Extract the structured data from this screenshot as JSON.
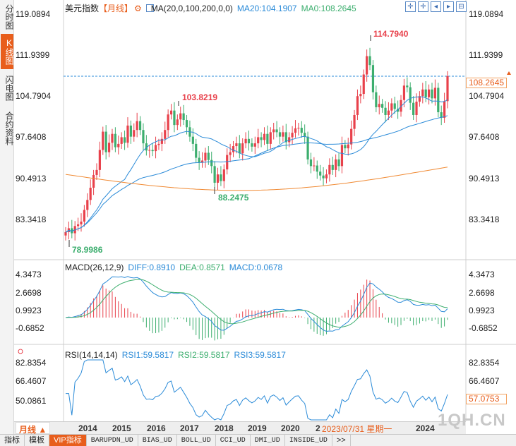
{
  "sidebar": {
    "tabs": [
      {
        "label": "分时图",
        "active": false
      },
      {
        "label": "K线图",
        "active": true
      },
      {
        "label": "闪电图",
        "active": false
      },
      {
        "label": "合约资料",
        "active": false
      }
    ]
  },
  "header": {
    "symbol": "美元指数",
    "period_tag": "【月线】",
    "ma_label": "MA(20,0,100,200,0,0)",
    "ma20": "MA20:104.1907",
    "ma0": "MA0:108.2645"
  },
  "toolbar_icons": [
    "zoom-in-icon",
    "zoom-out-icon",
    "pan-left-icon",
    "pan-right-icon",
    "reset-icon"
  ],
  "price_axis": {
    "labels": [
      "119.0894",
      "111.9399",
      "104.7904",
      "97.6408",
      "90.4913",
      "83.3418"
    ],
    "current": "108.2645"
  },
  "annotations": {
    "high": "114.7940",
    "high2": "103.8219",
    "low": "88.2475",
    "low_all": "78.9986"
  },
  "macd": {
    "title": "MACD(26,12,9)",
    "diff": "DIFF:0.8910",
    "dea": "DEA:0.8571",
    "macd": "MACD:0.0678",
    "axis": [
      "4.3473",
      "2.6698",
      "0.9923",
      "-0.6852"
    ]
  },
  "rsi": {
    "title": "RSI(14,14,14)",
    "rsi1": "RSI1:59.5817",
    "rsi2": "RSI2:59.5817",
    "rsi3": "RSI3:59.5817",
    "axis": [
      "82.8354",
      "66.4607",
      "50.0861"
    ],
    "current": "57.0753"
  },
  "x_axis": {
    "period_label": "月线 ▲",
    "years": [
      "2014",
      "2015",
      "2016",
      "2017",
      "2018",
      "2019",
      "2020",
      "2"
    ],
    "year_2024": "2024",
    "crosshair_date": "2023/07/31 星期一"
  },
  "bottom_tabs": [
    {
      "label": "指标",
      "active": false
    },
    {
      "label": "模板",
      "active": false
    },
    {
      "label": "VIP指标",
      "active": true
    },
    {
      "label": "BARUPDN_UD",
      "active": false
    },
    {
      "label": "BIAS_UD",
      "active": false
    },
    {
      "label": "BOLL_UD",
      "active": false
    },
    {
      "label": "CCI_UD",
      "active": false
    },
    {
      "label": "DMI_UD",
      "active": false
    },
    {
      "label": "INSIDE_UD",
      "active": false
    },
    {
      "label": ">>",
      "active": false
    }
  ],
  "watermark": "1QH.CN",
  "colors": {
    "up": "#e8414b",
    "down": "#3cae6e",
    "ma20": "#2b8bd8",
    "ma100": "#2b8bd8",
    "ma200": "#f08a34",
    "accent": "#e85e1c",
    "dea": "#3cae6e"
  },
  "chart_data": {
    "type": "candlestick",
    "title": "美元指数【月线】",
    "ylim": [
      76,
      121
    ],
    "series_close": [
      80.2,
      80.9,
      80.0,
      81.3,
      81.6,
      82.1,
      84.2,
      86.0,
      88.2,
      90.5,
      91.4,
      95.0,
      98.3,
      94.6,
      96.3,
      97.9,
      95.5,
      96.1,
      97.3,
      96.3,
      99.4,
      97.4,
      98.6,
      100.2,
      98.6,
      96.2,
      94.9,
      95.0,
      94.8,
      95.9,
      96.1,
      97.0,
      98.6,
      101.4,
      102.1,
      99.5,
      100.5,
      101.6,
      100.4,
      99.1,
      97.4,
      96.1,
      93.6,
      92.7,
      93.1,
      94.5,
      93.2,
      92.1,
      89.1,
      90.6,
      89.4,
      91.5,
      94.1,
      94.6,
      95.7,
      96.2,
      94.4,
      96.2,
      97.0,
      96.2,
      95.6,
      96.2,
      97.3,
      96.8,
      97.9,
      96.1,
      98.2,
      98.7,
      98.2,
      97.4,
      98.2,
      96.4,
      97.3,
      98.1,
      98.9,
      99.0,
      98.1,
      97.4,
      93.3,
      92.1,
      92.2,
      91.1,
      90.4,
      89.9,
      90.6,
      92.3,
      91.4,
      93.3,
      92.1,
      95.9,
      95.3,
      96.0,
      98.8,
      101.3,
      104.7,
      105.1,
      108.6,
      111.9,
      110.3,
      105.4,
      102.7,
      103.3,
      102.6,
      101.3,
      102.1,
      103.4,
      102.4,
      101.9,
      104.0,
      106.6,
      106.3,
      103.5,
      101.3,
      103.7,
      104.7,
      105.9,
      104.5,
      105.9,
      104.3,
      106.2,
      101.8,
      100.8,
      103.8,
      108.3
    ]
  }
}
